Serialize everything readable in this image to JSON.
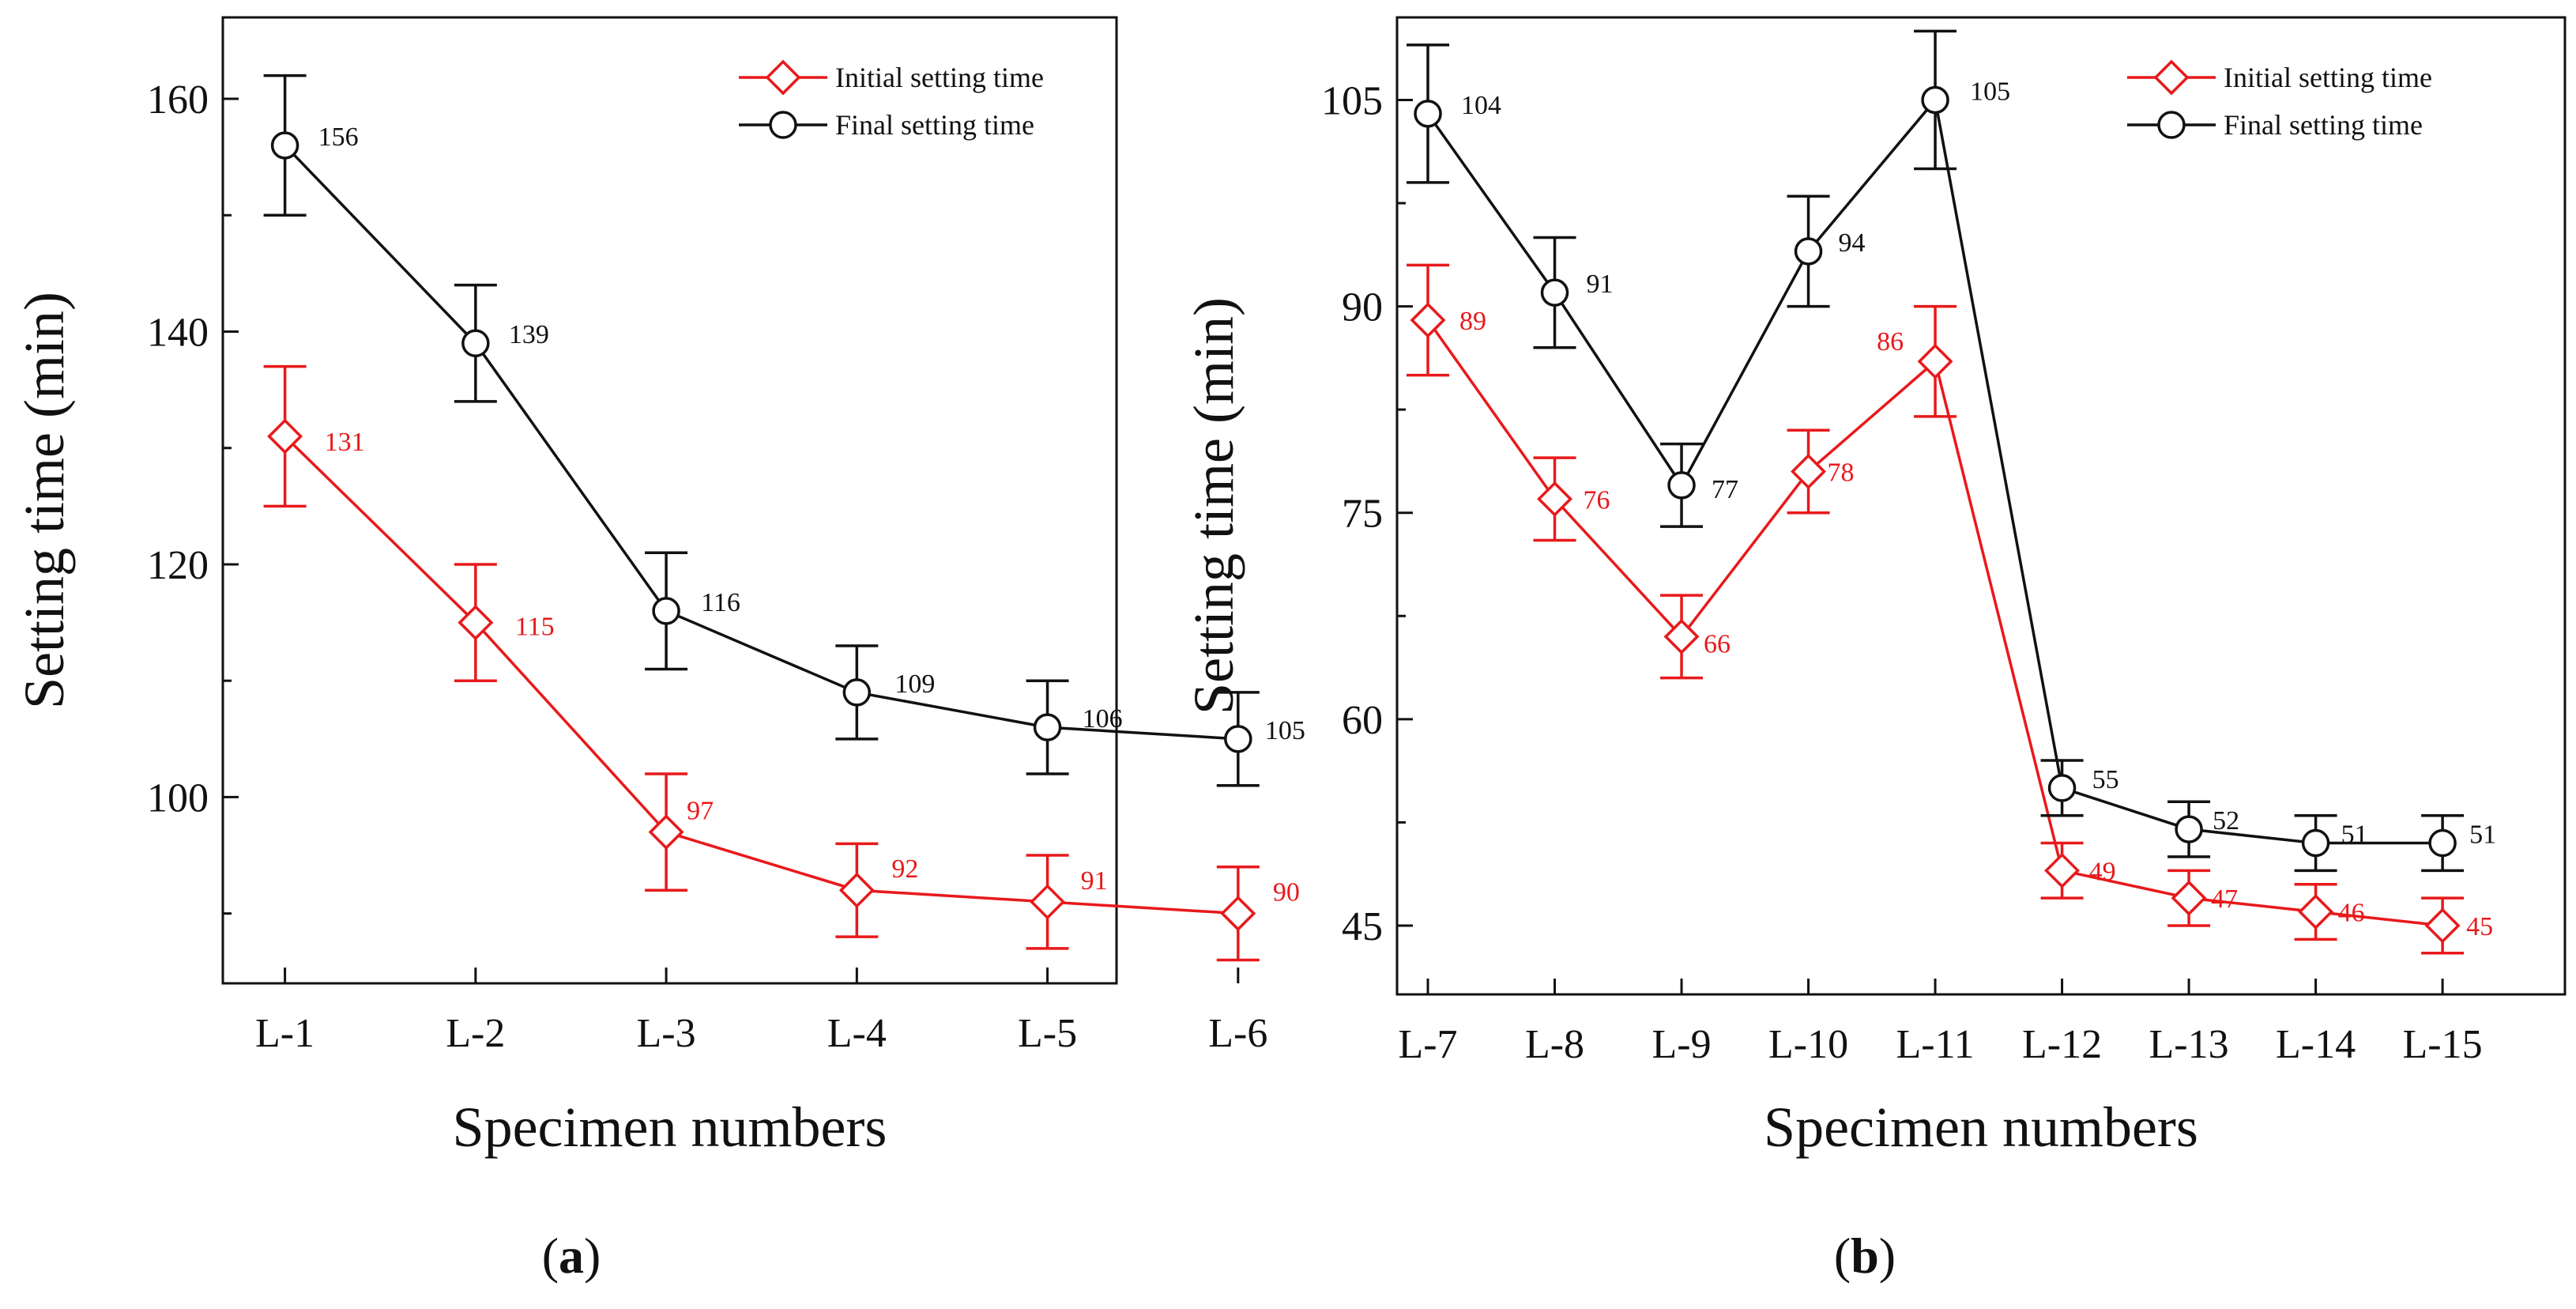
{
  "colors": {
    "initial": "#e8191b",
    "final": "#111111",
    "axis": "#111111"
  },
  "chart_data": [
    {
      "panel": "a",
      "type": "line",
      "caption_open": "(",
      "caption_letter": "a",
      "caption_close": ")",
      "xlabel": "Specimen numbers",
      "ylabel": "Setting time (min)",
      "categories": [
        "L-1",
        "L-2",
        "L-3",
        "L-4",
        "L-5",
        "L-6"
      ],
      "ylim": [
        84,
        167
      ],
      "yticks": [
        100,
        120,
        140,
        160
      ],
      "legend_position": "top-right",
      "series": [
        {
          "key": "initial",
          "name": "Initial setting time",
          "marker": "diamond",
          "values": [
            131,
            115,
            97,
            92,
            91,
            90
          ],
          "errors": [
            6,
            5,
            5,
            4,
            4,
            4
          ],
          "labels": [
            "131",
            "115",
            "97",
            "92",
            "91",
            "90"
          ]
        },
        {
          "key": "final",
          "name": "Final setting time",
          "marker": "circle",
          "values": [
            156,
            139,
            116,
            109,
            106,
            105
          ],
          "errors": [
            6,
            5,
            5,
            4,
            4,
            4
          ],
          "labels": [
            "156",
            "139",
            "116",
            "109",
            "106",
            "105"
          ]
        }
      ]
    },
    {
      "panel": "b",
      "type": "line",
      "caption_open": "(",
      "caption_letter": "b",
      "caption_close": ")",
      "xlabel": "Specimen numbers",
      "ylabel": "Setting time (min)",
      "categories": [
        "L-7",
        "L-8",
        "L-9",
        "L-10",
        "L-11",
        "L-12",
        "L-13",
        "L-14",
        "L-15"
      ],
      "ylim": [
        40,
        111
      ],
      "yticks": [
        45,
        60,
        75,
        90,
        105
      ],
      "legend_position": "top-right",
      "series": [
        {
          "key": "initial",
          "name": "Initial setting time",
          "marker": "diamond",
          "values": [
            89,
            76,
            66,
            78,
            86,
            49,
            47,
            46,
            45
          ],
          "errors": [
            4,
            3,
            3,
            3,
            4,
            2,
            2,
            2,
            2
          ],
          "labels": [
            "89",
            "76",
            "66",
            "78",
            "86",
            "49",
            "47",
            "46",
            "45"
          ]
        },
        {
          "key": "final",
          "name": "Final setting time",
          "marker": "circle",
          "values": [
            104,
            91,
            77,
            94,
            105,
            55,
            52,
            51,
            51
          ],
          "errors": [
            5,
            4,
            3,
            4,
            5,
            2,
            2,
            2,
            2
          ],
          "labels": [
            "104",
            "91",
            "77",
            "94",
            "105",
            "55",
            "52",
            "51",
            "51"
          ]
        }
      ]
    }
  ]
}
